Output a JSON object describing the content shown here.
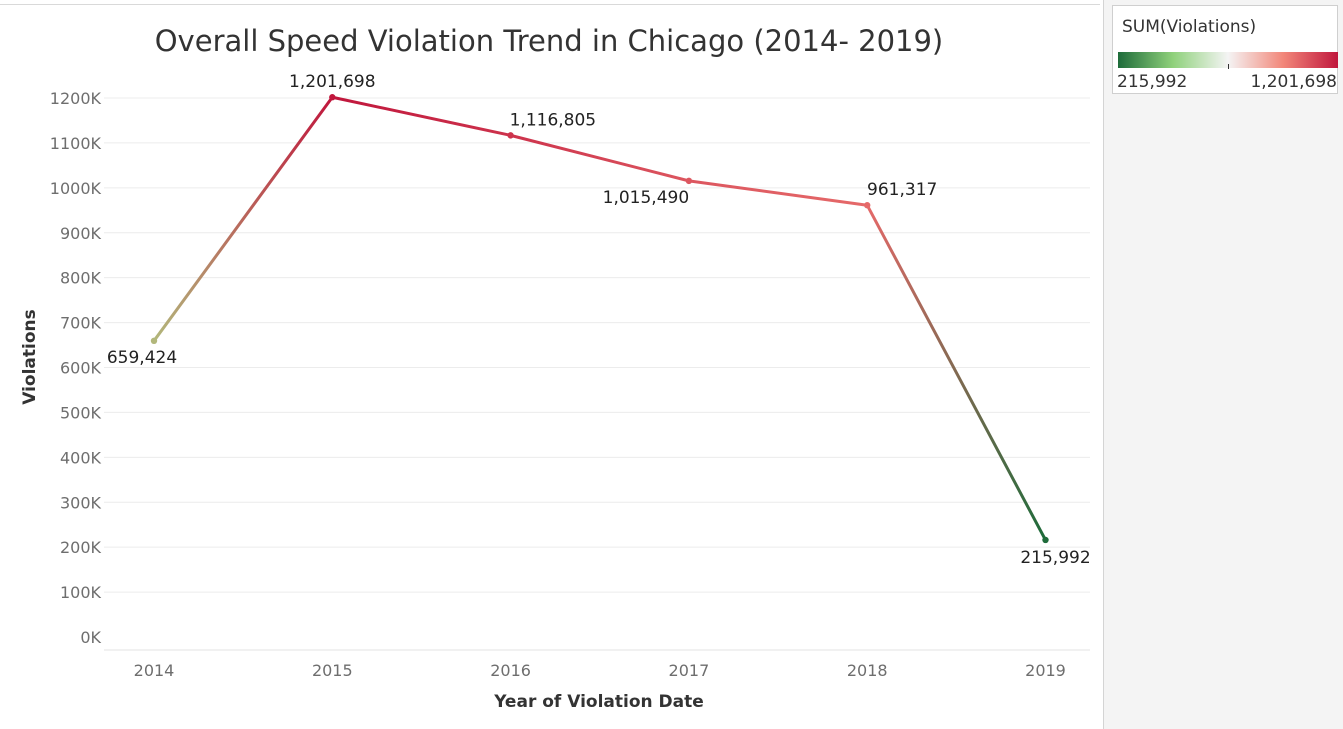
{
  "legend": {
    "title": "SUM(Violations)",
    "min_label": "215,992",
    "max_label": "1,201,698",
    "gradient_colors": [
      "#1e6b3a",
      "#8fd17b",
      "#f4f4f4",
      "#f2877a",
      "#c0163c"
    ]
  },
  "chart_data": {
    "type": "line",
    "title": "Overall Speed Violation Trend in Chicago (2014- 2019)",
    "xlabel": "Year of Violation Date",
    "ylabel": "Violations",
    "categories": [
      "2014",
      "2015",
      "2016",
      "2017",
      "2018",
      "2019"
    ],
    "values": [
      659424,
      1201698,
      1116805,
      1015490,
      961317,
      215992
    ],
    "data_labels": [
      "659,424",
      "1,201,698",
      "1,116,805",
      "1,015,490",
      "961,317",
      "215,992"
    ],
    "ylim": [
      0,
      1200000
    ],
    "yticks": [
      0,
      100000,
      200000,
      300000,
      400000,
      500000,
      600000,
      700000,
      800000,
      900000,
      1000000,
      1100000,
      1200000
    ],
    "ytick_labels": [
      "0K",
      "100K",
      "200K",
      "300K",
      "400K",
      "500K",
      "600K",
      "700K",
      "800K",
      "900K",
      "1000K",
      "1100K",
      "1200K"
    ],
    "grid": true,
    "color_encoding": {
      "measure": "SUM(Violations)",
      "min": 215992,
      "max": 1201698
    },
    "legend_position": "top-right"
  }
}
